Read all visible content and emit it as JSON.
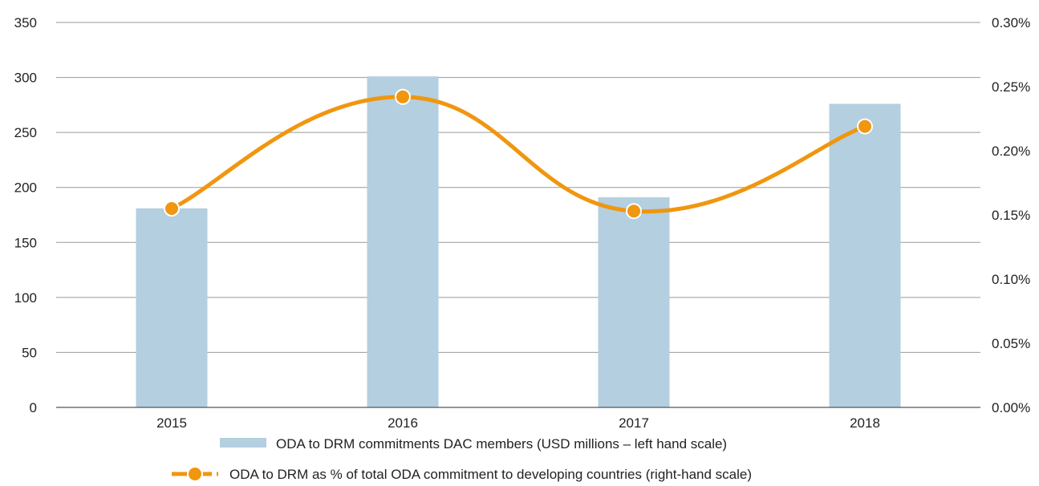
{
  "chart_data": {
    "type": "bar",
    "title": "",
    "xlabel": "",
    "ylabel": "",
    "categories": [
      "2015",
      "2016",
      "2017",
      "2018"
    ],
    "ylim": [
      0,
      350
    ],
    "y2lim": [
      0,
      0.3
    ],
    "yticks": [
      "0",
      "50",
      "100",
      "150",
      "200",
      "250",
      "300",
      "350"
    ],
    "y2ticks": [
      "0.00%",
      "0.05%",
      "0.10%",
      "0.15%",
      "0.20%",
      "0.25%",
      "0.30%"
    ],
    "grid": true,
    "legend_position": "bottom",
    "series": [
      {
        "name": "ODA to DRM commitments DAC members (USD millions – left hand scale)",
        "type": "bar",
        "axis": "left",
        "color": "#b3cfe0",
        "values": [
          181,
          301,
          191,
          276
        ]
      },
      {
        "name": "ODA to DRM as % of total ODA commitment to developing countries (right-hand scale)",
        "type": "line",
        "axis": "right",
        "color": "#f0960f",
        "values": [
          0.155,
          0.242,
          0.153,
          0.219
        ]
      }
    ]
  }
}
